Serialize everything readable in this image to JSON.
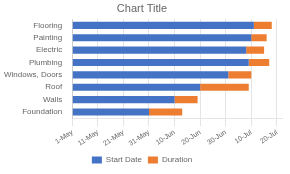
{
  "chart_data": {
    "type": "bar",
    "orientation": "horizontal",
    "stacked": true,
    "title": "Chart Title",
    "categories": [
      "Foundation",
      "Walls",
      "Roof",
      "Windows, Doors",
      "Plumbing",
      "Electric",
      "Painting",
      "Flooring"
    ],
    "series": [
      {
        "name": "Start Date",
        "color": "#4472C4",
        "values": [
          30,
          40,
          50,
          61,
          69,
          68,
          70,
          71
        ]
      },
      {
        "name": "Duration",
        "color": "#ED7D31",
        "values": [
          13,
          9,
          19,
          9,
          8,
          7,
          6,
          7
        ]
      }
    ],
    "xlim": [
      0,
      82
    ],
    "xticks": [
      {
        "value": 0,
        "label": "1-May"
      },
      {
        "value": 10,
        "label": "11-May"
      },
      {
        "value": 20,
        "label": "21-May"
      },
      {
        "value": 30,
        "label": "31-May"
      },
      {
        "value": 40,
        "label": "10-Jun"
      },
      {
        "value": 50,
        "label": "20-Jun"
      },
      {
        "value": 60,
        "label": "30-Jun"
      },
      {
        "value": 70,
        "label": "10-Jul"
      },
      {
        "value": 80,
        "label": "20-Jul"
      }
    ],
    "grid": true,
    "legend": "bottom"
  }
}
